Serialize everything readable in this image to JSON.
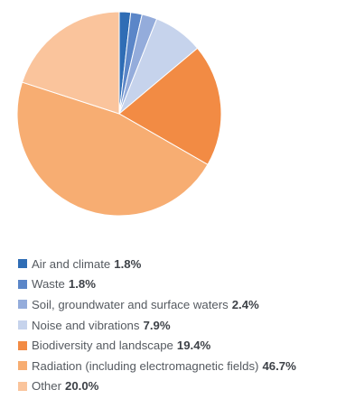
{
  "chart_data": {
    "type": "pie",
    "title": "",
    "slices": [
      {
        "label": "Air and climate",
        "value": 1.8,
        "value_label": "1.8%",
        "color": "#2f6db5"
      },
      {
        "label": "Waste",
        "value": 1.8,
        "value_label": "1.8%",
        "color": "#5b86c8"
      },
      {
        "label": "Soil, groundwater and surface waters",
        "value": 2.4,
        "value_label": "2.4%",
        "color": "#94acdb"
      },
      {
        "label": "Noise and vibrations",
        "value": 7.9,
        "value_label": "7.9%",
        "color": "#c6d3ec"
      },
      {
        "label": "Biodiversity and landscape",
        "value": 19.4,
        "value_label": "19.4%",
        "color": "#f28b44"
      },
      {
        "label": "Radiation (including electromagnetic fields)",
        "value": 46.7,
        "value_label": "46.7%",
        "color": "#f7ad72"
      },
      {
        "label": "Other",
        "value": 20.0,
        "value_label": "20.0%",
        "color": "#fac49c"
      }
    ],
    "start": "top",
    "direction": "clockwise",
    "legend_position": "bottom-left"
  }
}
